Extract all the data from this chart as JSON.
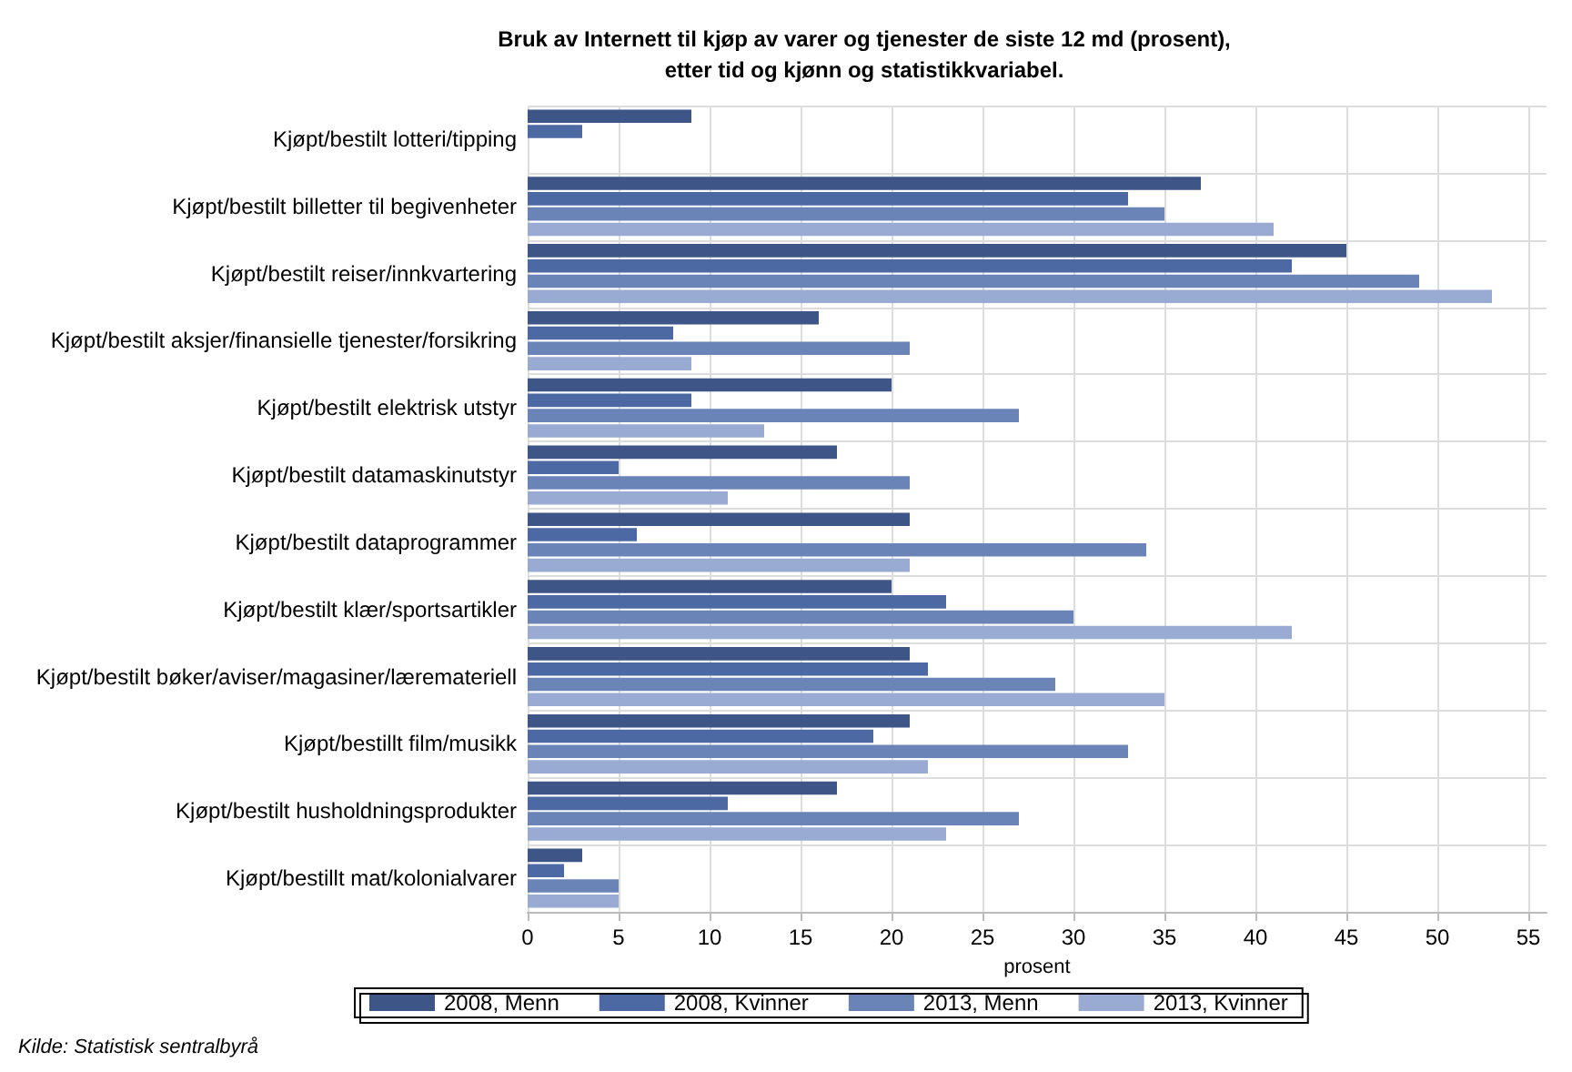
{
  "chart_data": {
    "type": "bar",
    "orientation": "horizontal",
    "title": "Bruk av Internett til kjøp av varer og tjenester de siste 12 md (prosent),\netter tid og kjønn og statistikkvariabel.",
    "xlabel": "prosent",
    "categories": [
      "Kjøpt/bestilt lotteri/tipping",
      "Kjøpt/bestilt billetter til begivenheter",
      "Kjøpt/bestilt reiser/innkvartering",
      "Kjøpt/bestilt aksjer/finansielle tjenester/forsikring",
      "Kjøpt/bestilt elektrisk utstyr",
      "Kjøpt/bestilt datamaskinutstyr",
      "Kjøpt/bestilt dataprogrammer",
      "Kjøpt/bestilt klær/sportsartikler",
      "Kjøpt/bestilt bøker/aviser/magasiner/læremateriell",
      "Kjøpt/bestillt film/musikk",
      "Kjøpt/bestilt husholdningsprodukter",
      "Kjøpt/bestillt mat/kolonialvarer"
    ],
    "series": [
      {
        "name": "2008, Menn",
        "color": "#3d5587",
        "values": [
          9,
          37,
          45,
          16,
          20,
          17,
          21,
          20,
          21,
          21,
          17,
          3
        ]
      },
      {
        "name": "2008, Kvinner",
        "color": "#4d69a3",
        "values": [
          3,
          33,
          42,
          8,
          9,
          5,
          6,
          23,
          22,
          19,
          11,
          2
        ]
      },
      {
        "name": "2013, Menn",
        "color": "#6a84b8",
        "values": [
          null,
          35,
          49,
          21,
          27,
          21,
          34,
          30,
          29,
          33,
          27,
          5
        ]
      },
      {
        "name": "2013, Kvinner",
        "color": "#9aabd3",
        "values": [
          null,
          41,
          53,
          9,
          13,
          11,
          21,
          42,
          35,
          22,
          23,
          5
        ]
      }
    ],
    "xlim": [
      0,
      56
    ],
    "xticks": [
      0,
      5,
      10,
      15,
      20,
      25,
      30,
      35,
      40,
      45,
      50,
      55
    ],
    "grid": true,
    "legend": "bottom",
    "annotations": [
      "Kilde: Statistisk sentralbyrå"
    ]
  }
}
